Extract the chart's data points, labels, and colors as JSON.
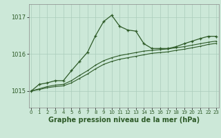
{
  "bg_color": "#cce8d8",
  "grid_color": "#aaccbb",
  "line_color": "#2d5a27",
  "xlabel": "Graphe pression niveau de la mer (hPa)",
  "xlabel_fontsize": 7.0,
  "yticks": [
    1015,
    1016,
    1017
  ],
  "xticks": [
    0,
    1,
    2,
    3,
    4,
    5,
    6,
    7,
    8,
    9,
    10,
    11,
    12,
    13,
    14,
    15,
    16,
    17,
    18,
    19,
    20,
    21,
    22,
    23
  ],
  "ylim": [
    1014.55,
    1017.35
  ],
  "xlim": [
    -0.3,
    23.3
  ],
  "series1": [
    1015.0,
    1015.18,
    1015.22,
    1015.28,
    1015.28,
    1015.55,
    1015.8,
    1016.05,
    1016.5,
    1016.88,
    1017.05,
    1016.75,
    1016.65,
    1016.62,
    1016.28,
    1016.15,
    1016.15,
    1016.15,
    1016.2,
    1016.28,
    1016.35,
    1016.42,
    1016.48,
    1016.48
  ],
  "series2": [
    1015.0,
    1015.06,
    1015.12,
    1015.16,
    1015.18,
    1015.28,
    1015.42,
    1015.55,
    1015.7,
    1015.82,
    1015.9,
    1015.96,
    1016.0,
    1016.04,
    1016.08,
    1016.1,
    1016.12,
    1016.14,
    1016.17,
    1016.2,
    1016.24,
    1016.28,
    1016.32,
    1016.35
  ],
  "series3": [
    1015.0,
    1015.04,
    1015.09,
    1015.12,
    1015.14,
    1015.22,
    1015.34,
    1015.46,
    1015.6,
    1015.72,
    1015.8,
    1015.86,
    1015.9,
    1015.94,
    1015.98,
    1016.02,
    1016.04,
    1016.06,
    1016.1,
    1016.13,
    1016.17,
    1016.21,
    1016.26,
    1016.29
  ]
}
